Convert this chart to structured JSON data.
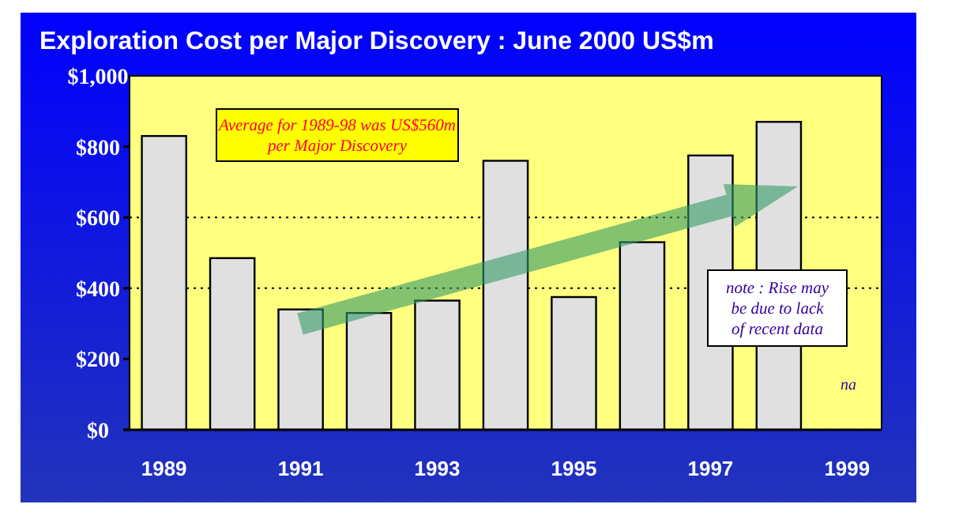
{
  "chart_data": {
    "type": "bar",
    "title": "Exploration Cost per Major Discovery : June 2000 US$m",
    "categories": [
      "1989",
      null,
      "1991",
      null,
      "1993",
      null,
      "1995",
      null,
      "1997",
      null,
      "1999"
    ],
    "values": [
      830,
      485,
      340,
      330,
      365,
      760,
      375,
      530,
      775,
      870,
      null
    ],
    "color": "#e0e0e0",
    "ylim": [
      0,
      1000
    ],
    "yticks": [
      {
        "value": 0,
        "label": "$0"
      },
      {
        "value": 200,
        "label": "$200"
      },
      {
        "value": 400,
        "label": "$400"
      },
      {
        "value": 600,
        "label": "$600"
      },
      {
        "value": 800,
        "label": "$800"
      },
      {
        "value": 1000,
        "label": "$1,000"
      }
    ],
    "grid": false,
    "ref_lines": [
      {
        "axis": "y",
        "value": 400,
        "line_style": "dotted"
      },
      {
        "axis": "y",
        "value": 600,
        "line_style": "dotted"
      }
    ],
    "annotations": [
      "Average for 1989-98 was US$560m per Major Discovery",
      "note : Rise may be due to lack of recent data",
      "na"
    ]
  }
}
